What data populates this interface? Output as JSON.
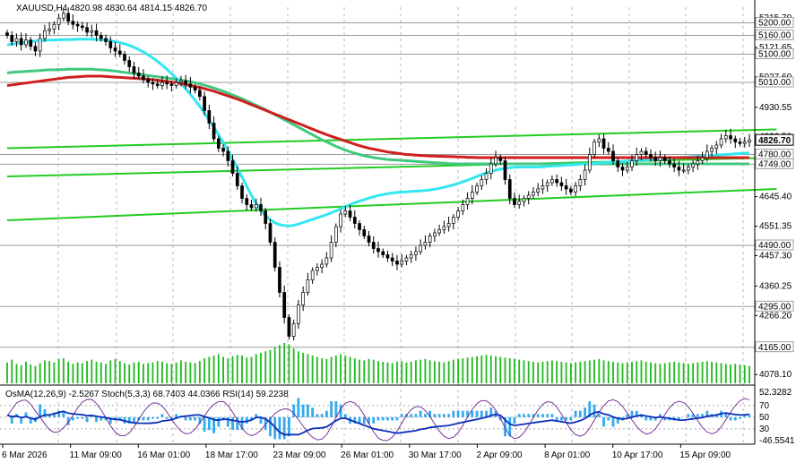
{
  "chart_data": {
    "type": "candlestick",
    "header": {
      "symbol": "XAUUSD,H4",
      "open": "4820.98",
      "high": "4830.64",
      "low": "4814.15",
      "close": "4826.70"
    },
    "price_range": [
      4050,
      5250
    ],
    "price_ticks": [
      "5215.70",
      "5121.65",
      "5027.60",
      "4930.55",
      "4836.50",
      "4742.45",
      "4645.40",
      "4551.35",
      "4457.30",
      "4360.25",
      "4266.20",
      "4078.10"
    ],
    "level_labels": [
      "5200.00",
      "5160.00",
      "5100.00",
      "5010.00",
      "4780.00",
      "4749.00",
      "4490.00",
      "4295.00",
      "4165.00"
    ],
    "last_price": "4826.70",
    "time_labels": [
      "6 Mar 2026",
      "11 Mar 09:00",
      "16 Mar 01:00",
      "18 Mar 17:00",
      "23 Mar 09:00",
      "26 Mar 01:00",
      "30 Mar 17:00",
      "2 Apr 09:00",
      "8 Apr 01:00",
      "10 Apr 17:00",
      "15 Apr 09:00"
    ],
    "close_series": [
      5160,
      5140,
      5150,
      5130,
      5145,
      5125,
      5110,
      5150,
      5175,
      5180,
      5195,
      5215,
      5230,
      5205,
      5195,
      5190,
      5185,
      5170,
      5175,
      5160,
      5150,
      5140,
      5120,
      5110,
      5100,
      5080,
      5060,
      5040,
      5030,
      5020,
      5010,
      5005,
      5000,
      5010,
      5005,
      5000,
      5010,
      5015,
      5005,
      4995,
      4985,
      4965,
      4920,
      4880,
      4830,
      4800,
      4790,
      4760,
      4720,
      4680,
      4640,
      4620,
      4610,
      4620,
      4600,
      4560,
      4500,
      4420,
      4340,
      4260,
      4200,
      4240,
      4300,
      4340,
      4380,
      4410,
      4420,
      4430,
      4450,
      4500,
      4550,
      4590,
      4600,
      4580,
      4560,
      4540,
      4520,
      4500,
      4480,
      4470,
      4460,
      4450,
      4440,
      4430,
      4440,
      4450,
      4460,
      4470,
      4490,
      4500,
      4520,
      4530,
      4540,
      4550,
      4560,
      4580,
      4600,
      4620,
      4640,
      4660,
      4680,
      4700,
      4720,
      4750,
      4770,
      4760,
      4700,
      4640,
      4620,
      4630,
      4640,
      4650,
      4660,
      4670,
      4680,
      4690,
      4700,
      4690,
      4680,
      4670,
      4660,
      4680,
      4700,
      4730,
      4780,
      4820,
      4830,
      4800,
      4790,
      4760,
      4740,
      4730,
      4740,
      4760,
      4780,
      4790,
      4780,
      4770,
      4760,
      4770,
      4760,
      4750,
      4740,
      4730,
      4730,
      4740,
      4750,
      4760,
      4770,
      4790,
      4800,
      4810,
      4830,
      4840,
      4830,
      4820,
      4815,
      4820,
      4826.7
    ],
    "volume_series": [
      30,
      34,
      28,
      26,
      31,
      27,
      25,
      29,
      33,
      32,
      30,
      35,
      36,
      31,
      28,
      30,
      29,
      32,
      34,
      31,
      30,
      28,
      33,
      35,
      32,
      29,
      27,
      30,
      31,
      28,
      29,
      30,
      32,
      31,
      29,
      28,
      30,
      33,
      31,
      30,
      29,
      32,
      36,
      38,
      40,
      42,
      38,
      36,
      39,
      41,
      40,
      37,
      38,
      42,
      44,
      46,
      48,
      52,
      55,
      58,
      56,
      50,
      46,
      44,
      42,
      40,
      38,
      36,
      35,
      38,
      40,
      42,
      40,
      38,
      36,
      34,
      33,
      35,
      34,
      32,
      31,
      30,
      29,
      31,
      32,
      30,
      31,
      33,
      34,
      35,
      33,
      32,
      31,
      30,
      32,
      34,
      35,
      36,
      37,
      38,
      39,
      40,
      41,
      40,
      39,
      38,
      37,
      36,
      35,
      34,
      33,
      32,
      31,
      30,
      31,
      32,
      33,
      32,
      31,
      30,
      29,
      30,
      31,
      32,
      33,
      34,
      35,
      33,
      32,
      31,
      30,
      29,
      30,
      31,
      32,
      33,
      31,
      30,
      29,
      28,
      29,
      30,
      31,
      30,
      29,
      28,
      29,
      30,
      31,
      32,
      31,
      30,
      29,
      28,
      27,
      28,
      27,
      26,
      25
    ],
    "ma_fast": [
      5130,
      5132,
      5134,
      5136,
      5138,
      5140,
      5142,
      5143,
      5144,
      5145,
      5145,
      5146,
      5146,
      5147,
      5147,
      5148,
      5148,
      5148,
      5148,
      5147,
      5146,
      5145,
      5143,
      5140,
      5137,
      5133,
      5128,
      5122,
      5115,
      5107,
      5098,
      5088,
      5077,
      5065,
      5052,
      5038,
      5023,
      5007,
      4990,
      4972,
      4953,
      4933,
      4912,
      4890,
      4867,
      4843,
      4818,
      4792,
      4765,
      4737,
      4708,
      4678,
      4650,
      4624,
      4602,
      4585,
      4572,
      4562,
      4556,
      4553,
      4552,
      4554,
      4558,
      4563,
      4568,
      4573,
      4578,
      4583,
      4588,
      4594,
      4600,
      4607,
      4614,
      4620,
      4626,
      4631,
      4636,
      4641,
      4645,
      4649,
      4652,
      4655,
      4657,
      4659,
      4660,
      4661,
      4662,
      4663,
      4664,
      4665,
      4667,
      4669,
      4672,
      4675,
      4679,
      4683,
      4688,
      4693,
      4698,
      4704,
      4710,
      4716,
      4721,
      4726,
      4730,
      4733,
      4736,
      4738,
      4739,
      4740,
      4740,
      4740,
      4740,
      4740,
      4741,
      4742,
      4743,
      4744,
      4745,
      4746,
      4747,
      4748,
      4749,
      4750,
      4751,
      4752,
      4753,
      4754,
      4755,
      4756,
      4757,
      4758,
      4759,
      4760,
      4761,
      4762,
      4763,
      4764,
      4765,
      4766,
      4767,
      4768,
      4769,
      4770,
      4771,
      4772,
      4773,
      4774,
      4775,
      4776,
      4777,
      4778,
      4779,
      4780,
      4781,
      4782,
      4783,
      4784,
      4785
    ],
    "ma_slow": [
      5040,
      5042,
      5043,
      5044,
      5045,
      5046,
      5047,
      5048,
      5049,
      5050,
      5050,
      5051,
      5051,
      5052,
      5052,
      5052,
      5052,
      5052,
      5052,
      5051,
      5050,
      5049,
      5048,
      5046,
      5044,
      5042,
      5040,
      5038,
      5036,
      5034,
      5032,
      5030,
      5028,
      5026,
      5024,
      5022,
      5020,
      5018,
      5015,
      5012,
      5009,
      5005,
      5001,
      4997,
      4992,
      4987,
      4982,
      4976,
      4970,
      4964,
      4958,
      4951,
      4944,
      4937,
      4930,
      4923,
      4915,
      4907,
      4899,
      4891,
      4883,
      4875,
      4867,
      4859,
      4851,
      4843,
      4835,
      4827,
      4820,
      4813,
      4806,
      4800,
      4794,
      4789,
      4784,
      4780,
      4776,
      4773,
      4770,
      4768,
      4766,
      4764,
      4763,
      4762,
      4761,
      4760,
      4759,
      4758,
      4757,
      4756,
      4755,
      4754,
      4753,
      4752,
      4751,
      4750,
      4750,
      4750,
      4750,
      4750,
      4750,
      4750,
      4750,
      4750,
      4750,
      4750,
      4750,
      4750,
      4750,
      4750,
      4750,
      4750,
      4750,
      4750,
      4750,
      4750,
      4750,
      4750,
      4750,
      4750,
      4750,
      4750,
      4750,
      4750,
      4750,
      4750,
      4750,
      4750,
      4750,
      4750,
      4750,
      4750,
      4750,
      4750,
      4750,
      4750,
      4750,
      4750,
      4750,
      4750,
      4750,
      4750,
      4750,
      4750,
      4750,
      4750,
      4750,
      4750,
      4750,
      4750,
      4750,
      4750,
      4750,
      4750,
      4750,
      4750,
      4750,
      4750,
      4750
    ],
    "ma_base": [
      5000,
      5002,
      5004,
      5006,
      5008,
      5010,
      5012,
      5014,
      5016,
      5018,
      5020,
      5022,
      5024,
      5026,
      5027,
      5028,
      5029,
      5030,
      5030,
      5030,
      5030,
      5029,
      5028,
      5027,
      5026,
      5025,
      5024,
      5023,
      5022,
      5021,
      5020,
      5019,
      5017,
      5015,
      5013,
      5011,
      5009,
      5006,
      5003,
      5000,
      4997,
      4994,
      4990,
      4986,
      4982,
      4977,
      4972,
      4967,
      4962,
      4957,
      4951,
      4945,
      4939,
      4933,
      4927,
      4921,
      4915,
      4909,
      4903,
      4897,
      4891,
      4885,
      4879,
      4873,
      4867,
      4861,
      4855,
      4849,
      4843,
      4838,
      4833,
      4828,
      4823,
      4818,
      4813,
      4808,
      4804,
      4800,
      4797,
      4794,
      4791,
      4788,
      4786,
      4784,
      4782,
      4780,
      4779,
      4778,
      4777,
      4776,
      4775,
      4775,
      4774,
      4774,
      4773,
      4773,
      4772,
      4772,
      4771,
      4771,
      4770,
      4770,
      4770,
      4770,
      4770,
      4770,
      4770,
      4770,
      4770,
      4770,
      4770,
      4770,
      4770,
      4770,
      4770,
      4770,
      4770,
      4770,
      4770,
      4770,
      4770,
      4770,
      4770,
      4770,
      4770,
      4770,
      4770,
      4770,
      4770,
      4770,
      4770,
      4770,
      4770,
      4770,
      4770,
      4770,
      4770,
      4770,
      4770,
      4770,
      4770,
      4770,
      4770,
      4770,
      4770,
      4770,
      4770,
      4770,
      4770,
      4770,
      4770,
      4770,
      4770,
      4770,
      4770,
      4770,
      4770,
      4770,
      4770
    ],
    "trendlines": [
      {
        "p1": [
          0,
          4800
        ],
        "p2": [
          160,
          4860
        ]
      },
      {
        "p1": [
          0,
          4570
        ],
        "p2": [
          160,
          4670
        ]
      },
      {
        "p1": [
          0,
          4710
        ],
        "p2": [
          160,
          4770
        ]
      }
    ],
    "oscillator": {
      "header": "OsMA(12,26,9) -2.5267  Stoch(5,3,3) 68.7403 44.0366  RSI(14) 59.2238",
      "ticks": [
        "52.3282",
        "70",
        "50",
        "30",
        "-46.5541"
      ],
      "range": [
        -46.5541,
        52.3282
      ]
    },
    "colors": {
      "candle": "#000000",
      "ma_fast": "#33e6f0",
      "ma_slow": "#40c880",
      "ma_base": "#d01e1e",
      "trend": "#22cc22",
      "volume": "#22bb22",
      "osma": "#33aaee",
      "rsi": "#0b2eb8",
      "stoch": "#6a2090",
      "tag_bg": "#ffffff"
    }
  }
}
